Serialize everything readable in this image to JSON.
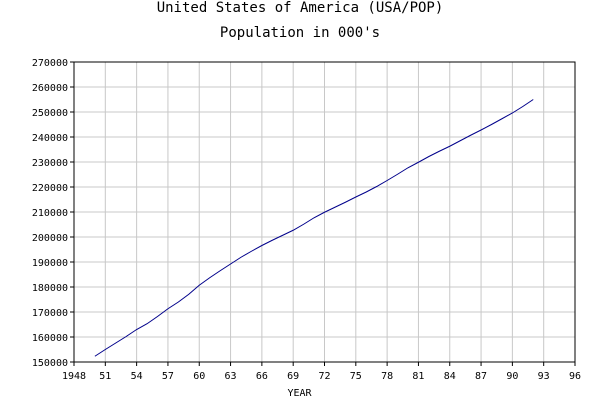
{
  "chart_data": {
    "type": "line",
    "title": "United States of America (USA/POP)",
    "subtitle": "Population in 000's",
    "xlabel": "YEAR",
    "ylabel": "",
    "xlim": [
      1948,
      1996
    ],
    "ylim": [
      150000,
      270000
    ],
    "grid": true,
    "legend": "none",
    "x_ticks": [
      1948,
      1951,
      1954,
      1957,
      1960,
      1963,
      1966,
      1969,
      1972,
      1975,
      1978,
      1981,
      1984,
      1987,
      1990,
      1993,
      1996
    ],
    "x_tick_labels": [
      "1948",
      "51",
      "54",
      "57",
      "60",
      "63",
      "66",
      "69",
      "72",
      "75",
      "78",
      "81",
      "84",
      "87",
      "90",
      "93",
      "96"
    ],
    "y_ticks": [
      150000,
      160000,
      170000,
      180000,
      190000,
      200000,
      210000,
      220000,
      230000,
      240000,
      250000,
      260000,
      270000
    ],
    "y_tick_labels": [
      "150000",
      "160000",
      "170000",
      "180000",
      "190000",
      "200000",
      "210000",
      "220000",
      "230000",
      "240000",
      "250000",
      "260000",
      "270000"
    ],
    "colors": {
      "line": "#00008b",
      "grid": "#c8c8c8",
      "axis": "#000000"
    },
    "series": [
      {
        "x": [
          1950,
          1951,
          1952,
          1953,
          1954,
          1955,
          1956,
          1957,
          1958,
          1959,
          1960,
          1961,
          1962,
          1963,
          1964,
          1965,
          1966,
          1967,
          1968,
          1969,
          1970,
          1971,
          1972,
          1973,
          1974,
          1975,
          1976,
          1977,
          1978,
          1979,
          1980,
          1981,
          1982,
          1983,
          1984,
          1985,
          1986,
          1987,
          1988,
          1989,
          1990,
          1991,
          1992
        ],
        "values": [
          152300,
          155000,
          157600,
          160200,
          163000,
          165300,
          168200,
          171300,
          174000,
          177100,
          180700,
          183700,
          186500,
          189200,
          191900,
          194300,
          196600,
          198700,
          200700,
          202700,
          205100,
          207700,
          209900,
          211900,
          213900,
          216000,
          218000,
          220200,
          222600,
          225100,
          227700,
          229900,
          232200,
          234300,
          236300,
          238500,
          240700,
          242800,
          245000,
          247300,
          249600,
          252200,
          255000
        ]
      }
    ]
  }
}
